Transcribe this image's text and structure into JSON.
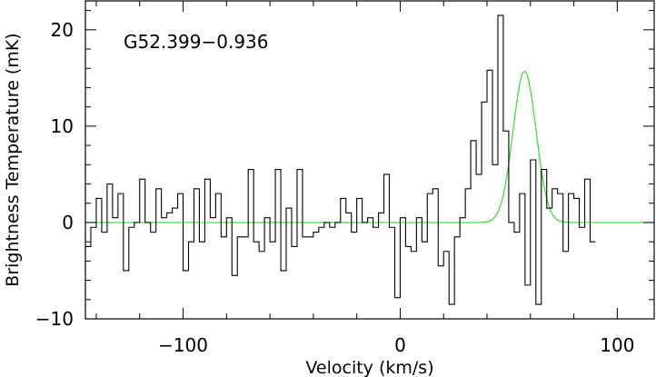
{
  "chart_data": {
    "type": "line",
    "title": "",
    "annotation": "G52.399−0.936",
    "xlabel": "Velocity (km/s)",
    "ylabel": "Brightness Temperature (mK)",
    "xlim": [
      -145,
      117
    ],
    "ylim": [
      -10,
      23
    ],
    "xticks_major": [
      -100,
      0,
      100
    ],
    "xtick_labels": [
      "−100",
      "0",
      "100"
    ],
    "yticks_major": [
      -10,
      0,
      10,
      20
    ],
    "ytick_labels": [
      "−10",
      "0",
      "10",
      "20"
    ],
    "colors": {
      "spectrum": "#000000",
      "fit": "#33dd33",
      "frame": "#000000"
    },
    "series": [
      {
        "style": "histogram",
        "x_start": -145,
        "channel_width": 2.5,
        "values": [
          -2.5,
          -0.5,
          2.5,
          -1.0,
          4.0,
          0.5,
          3.0,
          -5.0,
          -0.5,
          0.0,
          4.5,
          0.0,
          -1.0,
          3.5,
          0.5,
          1.0,
          1.5,
          3.0,
          -5.0,
          -2.0,
          3.5,
          -2.0,
          4.5,
          0.5,
          3.0,
          -1.5,
          0.5,
          -5.5,
          -1.5,
          -1.5,
          5.5,
          -2.0,
          -3.0,
          0.5,
          -2.0,
          5.5,
          -5.0,
          1.5,
          -2.5,
          5.5,
          -1.5,
          -1.5,
          -1.0,
          -0.5,
          0.0,
          -0.5,
          0.0,
          2.5,
          1.0,
          -1.0,
          2.5,
          0.0,
          0.5,
          -0.5,
          1.0,
          5.0,
          -0.5,
          -7.8,
          0.5,
          -2.5,
          -3.0,
          0.5,
          -2.0,
          3.0,
          3.5,
          -4.5,
          -3.0,
          -8.5,
          -1.5,
          0.5,
          3.5,
          8.5,
          5.0,
          12.5,
          15.8,
          6.0,
          21.5,
          9.5,
          0.0,
          -1.0,
          3.0,
          -6.5,
          6.5,
          -8.5,
          5.5,
          1.5,
          3.5,
          3.0,
          -3.0,
          3.0,
          2.5,
          -0.5,
          4.5,
          -2.0
        ]
      },
      {
        "style": "gaussian-fit",
        "amplitude": 15.7,
        "center": 57.3,
        "fwhm": 12.5
      }
    ]
  }
}
